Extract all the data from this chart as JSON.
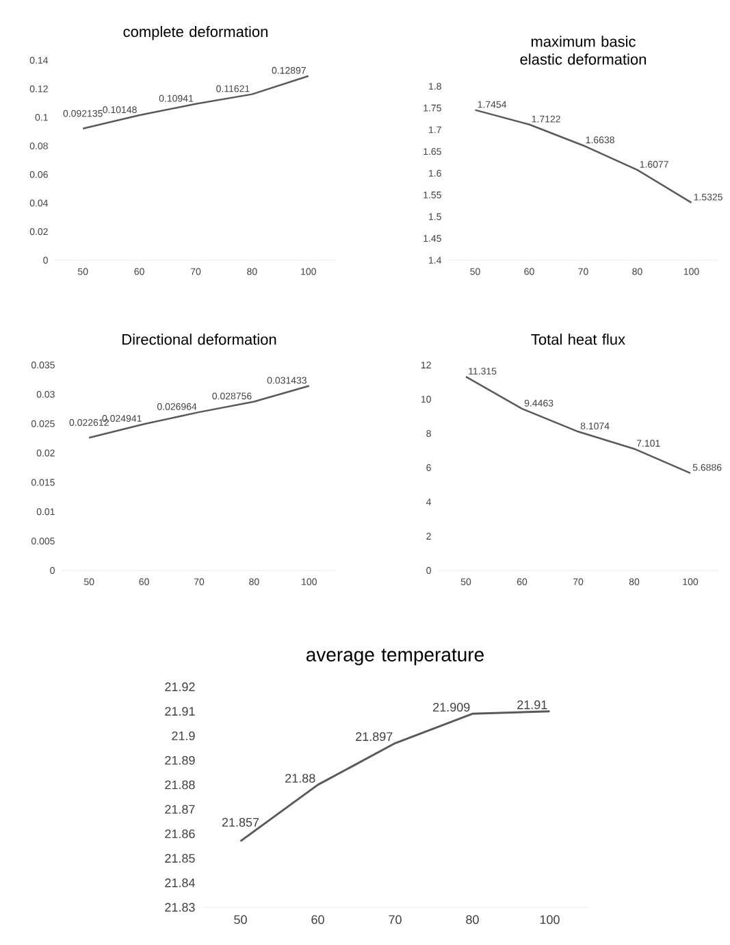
{
  "chart_data": [
    {
      "type": "line",
      "title": "complete deformation",
      "categories": [
        "50",
        "60",
        "70",
        "80",
        "100"
      ],
      "values": [
        0.092135,
        0.10148,
        0.10941,
        0.11621,
        0.12897
      ],
      "color": "#595959",
      "ylim": [
        0,
        0.14
      ],
      "yticks": [
        0,
        0.02,
        0.04,
        0.06,
        0.08,
        0.1,
        0.12,
        0.14
      ],
      "data_labels": true
    },
    {
      "type": "line",
      "title": "maximum basic elastic deformation",
      "categories": [
        "50",
        "60",
        "70",
        "80",
        "100"
      ],
      "values": [
        1.7454,
        1.7122,
        1.6638,
        1.6077,
        1.5325
      ],
      "color": "#595959",
      "ylim": [
        1.4,
        1.8
      ],
      "yticks": [
        1.4,
        1.45,
        1.5,
        1.55,
        1.6,
        1.65,
        1.7,
        1.75,
        1.8
      ],
      "data_labels": true
    },
    {
      "type": "line",
      "title": "Directional deformation",
      "categories": [
        "50",
        "60",
        "70",
        "80",
        "100"
      ],
      "values": [
        0.022612,
        0.024941,
        0.026964,
        0.028756,
        0.031433
      ],
      "color": "#595959",
      "ylim": [
        0,
        0.035
      ],
      "yticks": [
        0,
        0.005,
        0.01,
        0.015,
        0.02,
        0.025,
        0.03,
        0.035
      ],
      "data_labels": true
    },
    {
      "type": "line",
      "title": "Total heat flux",
      "categories": [
        "50",
        "60",
        "70",
        "80",
        "100"
      ],
      "values": [
        11.315,
        9.4463,
        8.1074,
        7.101,
        5.6886
      ],
      "color": "#595959",
      "ylim": [
        0,
        12
      ],
      "yticks": [
        0,
        2,
        4,
        6,
        8,
        10,
        12
      ],
      "data_labels": true
    },
    {
      "type": "line",
      "title": "average temperature",
      "categories": [
        "50",
        "60",
        "70",
        "80",
        "100"
      ],
      "values": [
        21.857,
        21.88,
        21.897,
        21.909,
        21.91
      ],
      "color": "#595959",
      "ylim": [
        21.83,
        21.92
      ],
      "yticks": [
        21.83,
        21.84,
        21.85,
        21.86,
        21.87,
        21.88,
        21.89,
        21.9,
        21.91,
        21.92
      ],
      "data_labels": true
    }
  ]
}
